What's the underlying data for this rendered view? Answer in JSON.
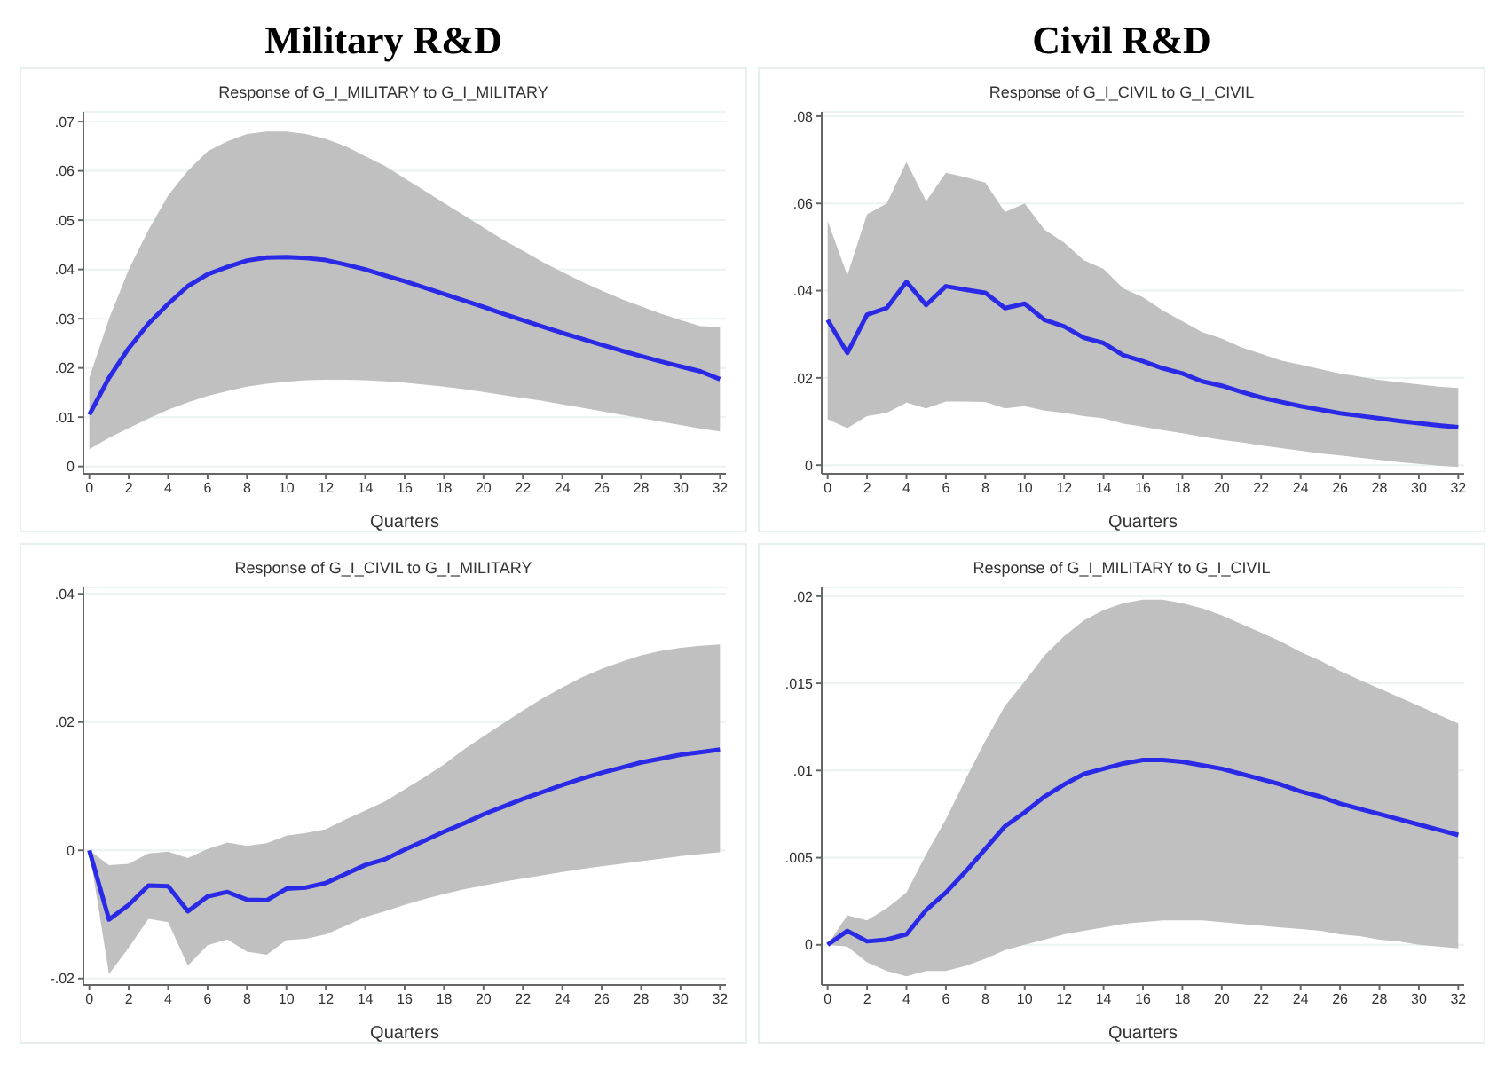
{
  "chart_data": [
    {
      "type": "line",
      "title": "Military R&D",
      "subtitle": "Response of G_I_MILITARY to G_I_MILITARY",
      "xlabel": "Quarters",
      "x": [
        0,
        1,
        2,
        3,
        4,
        5,
        6,
        7,
        8,
        9,
        10,
        11,
        12,
        13,
        14,
        15,
        16,
        17,
        18,
        19,
        20,
        21,
        22,
        23,
        24,
        25,
        26,
        27,
        28,
        29,
        30,
        31,
        32
      ],
      "xlim": [
        -0.3,
        32.3
      ],
      "xticks": [
        0,
        2,
        4,
        6,
        8,
        10,
        12,
        14,
        16,
        18,
        20,
        22,
        24,
        26,
        28,
        30,
        32
      ],
      "ylim": [
        -0.0015,
        0.072
      ],
      "yticks": [
        {
          "value": 0,
          "label": "0"
        },
        {
          "value": 0.01,
          "label": ".01"
        },
        {
          "value": 0.02,
          "label": ".02"
        },
        {
          "value": 0.03,
          "label": ".03"
        },
        {
          "value": 0.04,
          "label": ".04"
        },
        {
          "value": 0.05,
          "label": ".05"
        },
        {
          "value": 0.06,
          "label": ".06"
        },
        {
          "value": 0.07,
          "label": ".07"
        }
      ],
      "grid": "y",
      "series": [
        {
          "color": "#2a2ae6",
          "values": [
            0.0105,
            0.018,
            0.024,
            0.029,
            0.033,
            0.0366,
            0.039,
            0.0405,
            0.0418,
            0.0424,
            0.0425,
            0.0423,
            0.0419,
            0.041,
            0.04,
            0.0388,
            0.0376,
            0.0363,
            0.035,
            0.0337,
            0.0324,
            0.031,
            0.0297,
            0.0284,
            0.0271,
            0.0259,
            0.0247,
            0.0235,
            0.0224,
            0.0213,
            0.0203,
            0.0193,
            0.0177
          ],
          "lower": [
            0.0035,
            0.0058,
            0.0078,
            0.0097,
            0.0115,
            0.013,
            0.0143,
            0.0153,
            0.0162,
            0.0168,
            0.0172,
            0.0175,
            0.0176,
            0.0176,
            0.0175,
            0.0173,
            0.017,
            0.0166,
            0.0162,
            0.0157,
            0.0151,
            0.0145,
            0.0139,
            0.0133,
            0.0126,
            0.0119,
            0.0112,
            0.0105,
            0.0098,
            0.0091,
            0.0084,
            0.0077,
            0.0071
          ],
          "upper": [
            0.018,
            0.03,
            0.04,
            0.048,
            0.055,
            0.06,
            0.064,
            0.066,
            0.0675,
            0.068,
            0.068,
            0.0675,
            0.0665,
            0.065,
            0.063,
            0.061,
            0.0585,
            0.056,
            0.0535,
            0.051,
            0.0485,
            0.046,
            0.0438,
            0.0415,
            0.0395,
            0.0375,
            0.0357,
            0.034,
            0.0325,
            0.031,
            0.0297,
            0.0285,
            0.0283
          ]
        }
      ]
    },
    {
      "type": "line",
      "title": "Civil R&D",
      "subtitle": "Response of G_I_CIVIL to G_I_CIVIL",
      "xlabel": "Quarters",
      "x": [
        0,
        1,
        2,
        3,
        4,
        5,
        6,
        7,
        8,
        9,
        10,
        11,
        12,
        13,
        14,
        15,
        16,
        17,
        18,
        19,
        20,
        21,
        22,
        23,
        24,
        25,
        26,
        27,
        28,
        29,
        30,
        31,
        32
      ],
      "xlim": [
        -0.3,
        32.3
      ],
      "xticks": [
        0,
        2,
        4,
        6,
        8,
        10,
        12,
        14,
        16,
        18,
        20,
        22,
        24,
        26,
        28,
        30,
        32
      ],
      "ylim": [
        -0.002,
        0.081
      ],
      "yticks": [
        {
          "value": 0,
          "label": "0"
        },
        {
          "value": 0.02,
          "label": ".02"
        },
        {
          "value": 0.04,
          "label": ".04"
        },
        {
          "value": 0.06,
          "label": ".06"
        },
        {
          "value": 0.08,
          "label": ".08"
        }
      ],
      "grid": "y",
      "series": [
        {
          "color": "#2a2ae6",
          "values": [
            0.0333,
            0.0257,
            0.0345,
            0.036,
            0.042,
            0.0367,
            0.041,
            0.0402,
            0.0395,
            0.036,
            0.037,
            0.0333,
            0.0318,
            0.0292,
            0.028,
            0.0252,
            0.0238,
            0.0222,
            0.021,
            0.0192,
            0.0182,
            0.0168,
            0.0155,
            0.0145,
            0.0135,
            0.0127,
            0.0119,
            0.0113,
            0.0107,
            0.0101,
            0.0096,
            0.0091,
            0.0087
          ],
          "lower": [
            0.0105,
            0.0085,
            0.0112,
            0.012,
            0.0143,
            0.013,
            0.0146,
            0.0146,
            0.0145,
            0.013,
            0.0135,
            0.0125,
            0.012,
            0.0112,
            0.0107,
            0.0095,
            0.0088,
            0.008,
            0.0073,
            0.0065,
            0.0058,
            0.0052,
            0.0045,
            0.0039,
            0.0033,
            0.0027,
            0.0022,
            0.0017,
            0.0012,
            0.0007,
            0.0003,
            -0.0001,
            -0.0004
          ],
          "upper": [
            0.056,
            0.0435,
            0.0575,
            0.06,
            0.0695,
            0.0605,
            0.067,
            0.066,
            0.0648,
            0.058,
            0.06,
            0.054,
            0.051,
            0.047,
            0.045,
            0.0405,
            0.0385,
            0.0355,
            0.033,
            0.0305,
            0.029,
            0.027,
            0.0255,
            0.024,
            0.023,
            0.022,
            0.021,
            0.0203,
            0.0195,
            0.019,
            0.0185,
            0.018,
            0.0177
          ]
        }
      ]
    },
    {
      "type": "line",
      "subtitle": "Response of G_I_CIVIL to G_I_MILITARY",
      "xlabel": "Quarters",
      "x": [
        0,
        1,
        2,
        3,
        4,
        5,
        6,
        7,
        8,
        9,
        10,
        11,
        12,
        13,
        14,
        15,
        16,
        17,
        18,
        19,
        20,
        21,
        22,
        23,
        24,
        25,
        26,
        27,
        28,
        29,
        30,
        31,
        32
      ],
      "xlim": [
        -0.3,
        32.3
      ],
      "xticks": [
        0,
        2,
        4,
        6,
        8,
        10,
        12,
        14,
        16,
        18,
        20,
        22,
        24,
        26,
        28,
        30,
        32
      ],
      "ylim": [
        -0.021,
        0.041
      ],
      "yticks": [
        {
          "value": -0.02,
          "label": "-.02"
        },
        {
          "value": 0,
          "label": "0"
        },
        {
          "value": 0.02,
          "label": ".02"
        },
        {
          "value": 0.04,
          "label": ".04"
        }
      ],
      "grid": "y",
      "series": [
        {
          "color": "#2a2ae6",
          "values": [
            0,
            -0.0108,
            -0.0085,
            -0.0055,
            -0.0056,
            -0.0095,
            -0.0072,
            -0.0065,
            -0.0077,
            -0.0078,
            -0.006,
            -0.0058,
            -0.0051,
            -0.0037,
            -0.0023,
            -0.0014,
            0.0001,
            0.0015,
            0.0029,
            0.0042,
            0.0056,
            0.0068,
            0.008,
            0.0091,
            0.0102,
            0.0112,
            0.0121,
            0.0129,
            0.0137,
            0.0143,
            0.0149,
            0.0153,
            0.0157
          ],
          "lower": [
            0,
            -0.0193,
            -0.0152,
            -0.0107,
            -0.0112,
            -0.018,
            -0.0148,
            -0.0139,
            -0.0158,
            -0.0163,
            -0.014,
            -0.0138,
            -0.0131,
            -0.0118,
            -0.0104,
            -0.0095,
            -0.0085,
            -0.0076,
            -0.0068,
            -0.0061,
            -0.0055,
            -0.0049,
            -0.0044,
            -0.0039,
            -0.0034,
            -0.0029,
            -0.0025,
            -0.0021,
            -0.0017,
            -0.0013,
            -0.0009,
            -0.0006,
            -0.0003
          ],
          "upper": [
            0,
            -0.0023,
            -0.0021,
            -0.0005,
            -0.0002,
            -0.0012,
            0.0002,
            0.0012,
            0.0007,
            0.0011,
            0.0023,
            0.0027,
            0.0033,
            0.0048,
            0.0062,
            0.0076,
            0.0095,
            0.0114,
            0.0134,
            0.0157,
            0.0178,
            0.0198,
            0.0218,
            0.0237,
            0.0254,
            0.027,
            0.0283,
            0.0294,
            0.0304,
            0.0311,
            0.0316,
            0.0319,
            0.0321
          ]
        }
      ]
    },
    {
      "type": "line",
      "subtitle": "Response of G_I_MILITARY to G_I_CIVIL",
      "xlabel": "Quarters",
      "x": [
        0,
        1,
        2,
        3,
        4,
        5,
        6,
        7,
        8,
        9,
        10,
        11,
        12,
        13,
        14,
        15,
        16,
        17,
        18,
        19,
        20,
        21,
        22,
        23,
        24,
        25,
        26,
        27,
        28,
        29,
        30,
        31,
        32
      ],
      "xlim": [
        -0.3,
        32.3
      ],
      "xticks": [
        0,
        2,
        4,
        6,
        8,
        10,
        12,
        14,
        16,
        18,
        20,
        22,
        24,
        26,
        28,
        30,
        32
      ],
      "ylim": [
        -0.0023,
        0.0205
      ],
      "yticks": [
        {
          "value": 0,
          "label": "0"
        },
        {
          "value": 0.005,
          "label": ".005"
        },
        {
          "value": 0.01,
          "label": ".01"
        },
        {
          "value": 0.015,
          "label": ".015"
        },
        {
          "value": 0.02,
          "label": ".02"
        }
      ],
      "grid": "y",
      "series": [
        {
          "color": "#2a2ae6",
          "values": [
            0,
            0.0008,
            0.0002,
            0.0003,
            0.0006,
            0.002,
            0.003,
            0.0042,
            0.0055,
            0.0068,
            0.0076,
            0.0085,
            0.0092,
            0.0098,
            0.0101,
            0.0104,
            0.0106,
            0.0106,
            0.0105,
            0.0103,
            0.0101,
            0.0098,
            0.0095,
            0.0092,
            0.0088,
            0.0085,
            0.0081,
            0.0078,
            0.0075,
            0.0072,
            0.0069,
            0.0066,
            0.0063
          ],
          "lower": [
            0,
            -0.0001,
            -0.001,
            -0.0015,
            -0.0018,
            -0.0015,
            -0.0015,
            -0.0012,
            -0.0008,
            -0.0003,
            0,
            0.0003,
            0.0006,
            0.0008,
            0.001,
            0.0012,
            0.0013,
            0.0014,
            0.0014,
            0.0014,
            0.0013,
            0.0012,
            0.0011,
            0.001,
            0.0009,
            0.0008,
            0.0006,
            0.0005,
            0.0003,
            0.0002,
            0,
            -0.0001,
            -0.0002
          ],
          "upper": [
            0,
            0.0017,
            0.0014,
            0.0021,
            0.003,
            0.0052,
            0.0072,
            0.0095,
            0.0117,
            0.0137,
            0.0151,
            0.0166,
            0.0177,
            0.0186,
            0.0192,
            0.0196,
            0.0198,
            0.0198,
            0.0196,
            0.0193,
            0.0189,
            0.0184,
            0.0179,
            0.0174,
            0.0168,
            0.0163,
            0.0157,
            0.0152,
            0.0147,
            0.0142,
            0.0137,
            0.0132,
            0.0127
          ]
        }
      ]
    }
  ]
}
